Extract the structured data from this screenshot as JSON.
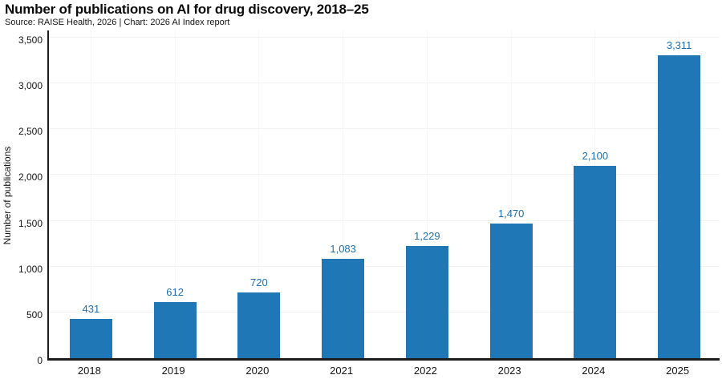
{
  "header": {
    "title": "Number of publications on AI for drug discovery, 2018–25",
    "subtitle": "Source: RAISE Health, 2026 | Chart: 2026 AI Index report"
  },
  "chart_data": {
    "type": "bar",
    "title": "Number of publications on AI for drug discovery, 2018–25",
    "subtitle": "Source: RAISE Health, 2026 | Chart: 2026 AI Index report",
    "categories": [
      "2018",
      "2019",
      "2020",
      "2021",
      "2022",
      "2023",
      "2024",
      "2025"
    ],
    "values": [
      431,
      612,
      720,
      1083,
      1229,
      1470,
      2100,
      3311
    ],
    "value_labels": [
      "431",
      "612",
      "720",
      "1,083",
      "1,229",
      "1,470",
      "2,100",
      "3,311"
    ],
    "xlabel": "",
    "ylabel": "Number of publications",
    "ylim": [
      0,
      3500
    ],
    "yticks": [
      0,
      500,
      1000,
      1500,
      2000,
      2500,
      3000,
      3500
    ],
    "ytick_labels": [
      "0",
      "500",
      "1,000",
      "1,500",
      "2,000",
      "2,500",
      "3,000",
      "3,500"
    ],
    "grid": "both, very light gray",
    "legend": "none",
    "bar_color": "#2077b6",
    "value_label_color": "#1d6fb0",
    "axis_color": "#1c1c1c"
  }
}
